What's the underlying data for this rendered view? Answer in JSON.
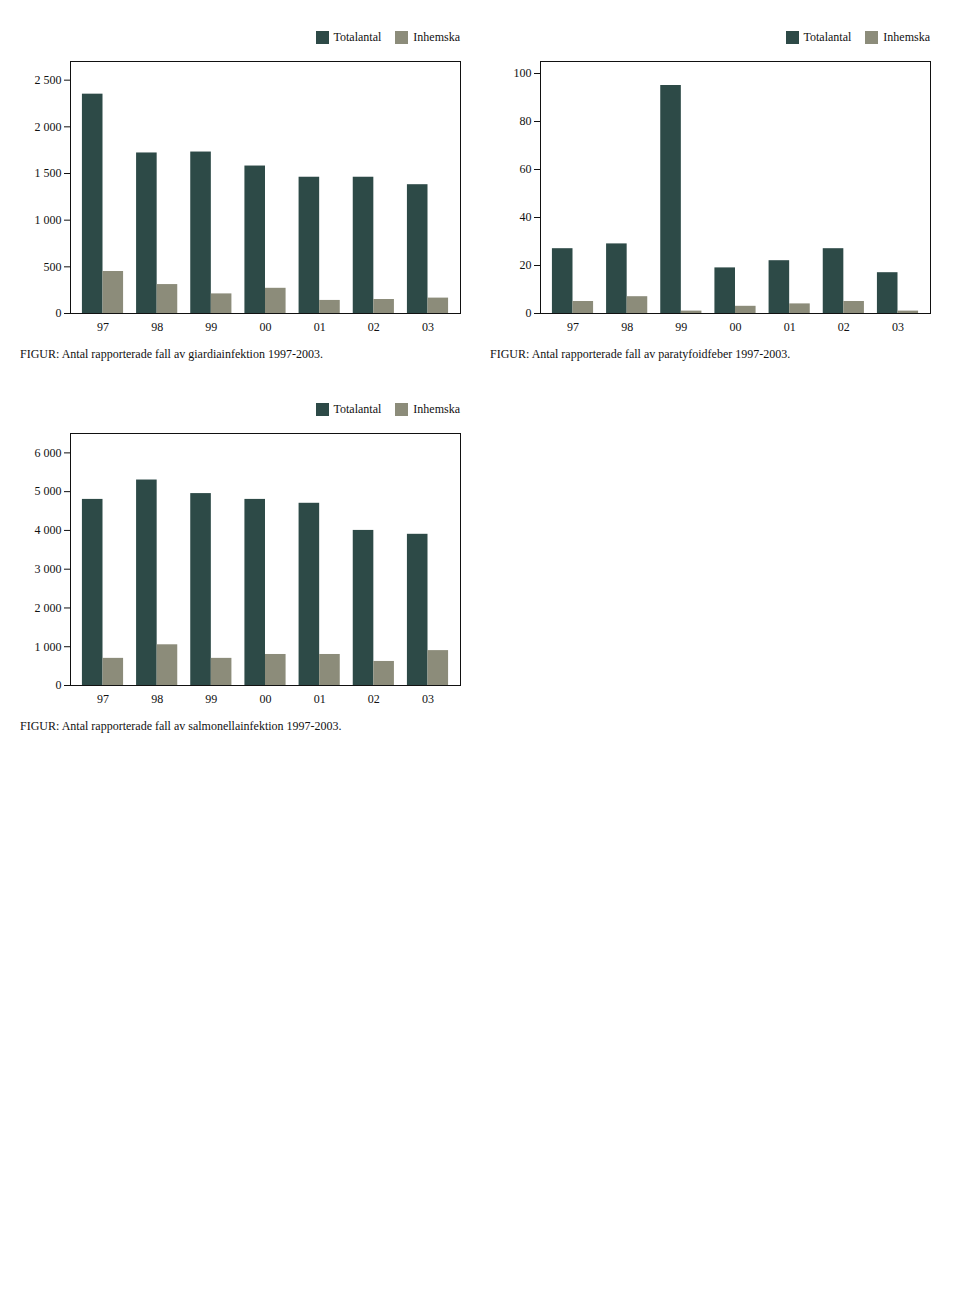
{
  "chart_data": [
    {
      "type": "bar",
      "title": "FIGUR: Antal rapporterade fall av giardiainfektion 1997-2003.",
      "categories": [
        "97",
        "98",
        "99",
        "00",
        "01",
        "02",
        "03"
      ],
      "series": [
        {
          "name": "Totalantal",
          "color": "#2d4a47",
          "values": [
            2350,
            1720,
            1730,
            1580,
            1460,
            1460,
            1380
          ]
        },
        {
          "name": "Inhemska",
          "color": "#8c8c7a",
          "values": [
            450,
            310,
            210,
            270,
            140,
            150,
            165
          ]
        }
      ],
      "ylim": [
        0,
        2700
      ],
      "yticks": [
        0,
        500,
        {
          "value": 1000,
          "label": "1 000"
        },
        {
          "value": 1500,
          "label": "1 500"
        },
        {
          "value": 2000,
          "label": "2 000"
        },
        {
          "value": 2500,
          "label": "2 500"
        }
      ],
      "grid": false,
      "legend": "upper right"
    },
    {
      "type": "bar",
      "title": "FIGUR: Antal rapporterade fall av paratyfoidfeber 1997-2003.",
      "categories": [
        "97",
        "98",
        "99",
        "00",
        "01",
        "02",
        "03"
      ],
      "series": [
        {
          "name": "Totalantal",
          "color": "#2d4a47",
          "values": [
            27,
            29,
            95,
            19,
            22,
            27,
            17
          ]
        },
        {
          "name": "Inhemska",
          "color": "#8c8c7a",
          "values": [
            5,
            7,
            1,
            3,
            4,
            5,
            1
          ]
        }
      ],
      "ylim": [
        0,
        105
      ],
      "yticks": [
        0,
        20,
        40,
        60,
        80,
        100
      ],
      "grid": false,
      "legend": "upper right"
    },
    {
      "type": "bar",
      "title": "FIGUR: Antal rapporterade fall av salmonellainfektion 1997-2003.",
      "categories": [
        "97",
        "98",
        "99",
        "00",
        "01",
        "02",
        "03"
      ],
      "series": [
        {
          "name": "Totalantal",
          "color": "#2d4a47",
          "values": [
            4800,
            5300,
            4950,
            4800,
            4700,
            4000,
            3900
          ]
        },
        {
          "name": "Inhemska",
          "color": "#8c8c7a",
          "values": [
            700,
            1050,
            700,
            800,
            800,
            620,
            900
          ]
        }
      ],
      "ylim": [
        0,
        6500
      ],
      "yticks": [
        0,
        {
          "value": 1000,
          "label": "1 000"
        },
        {
          "value": 2000,
          "label": "2 000"
        },
        {
          "value": 3000,
          "label": "3 000"
        },
        {
          "value": 4000,
          "label": "4 000"
        },
        {
          "value": 5000,
          "label": "5 000"
        },
        {
          "value": 6000,
          "label": "6 000"
        }
      ],
      "grid": false,
      "legend": "upper right"
    }
  ]
}
